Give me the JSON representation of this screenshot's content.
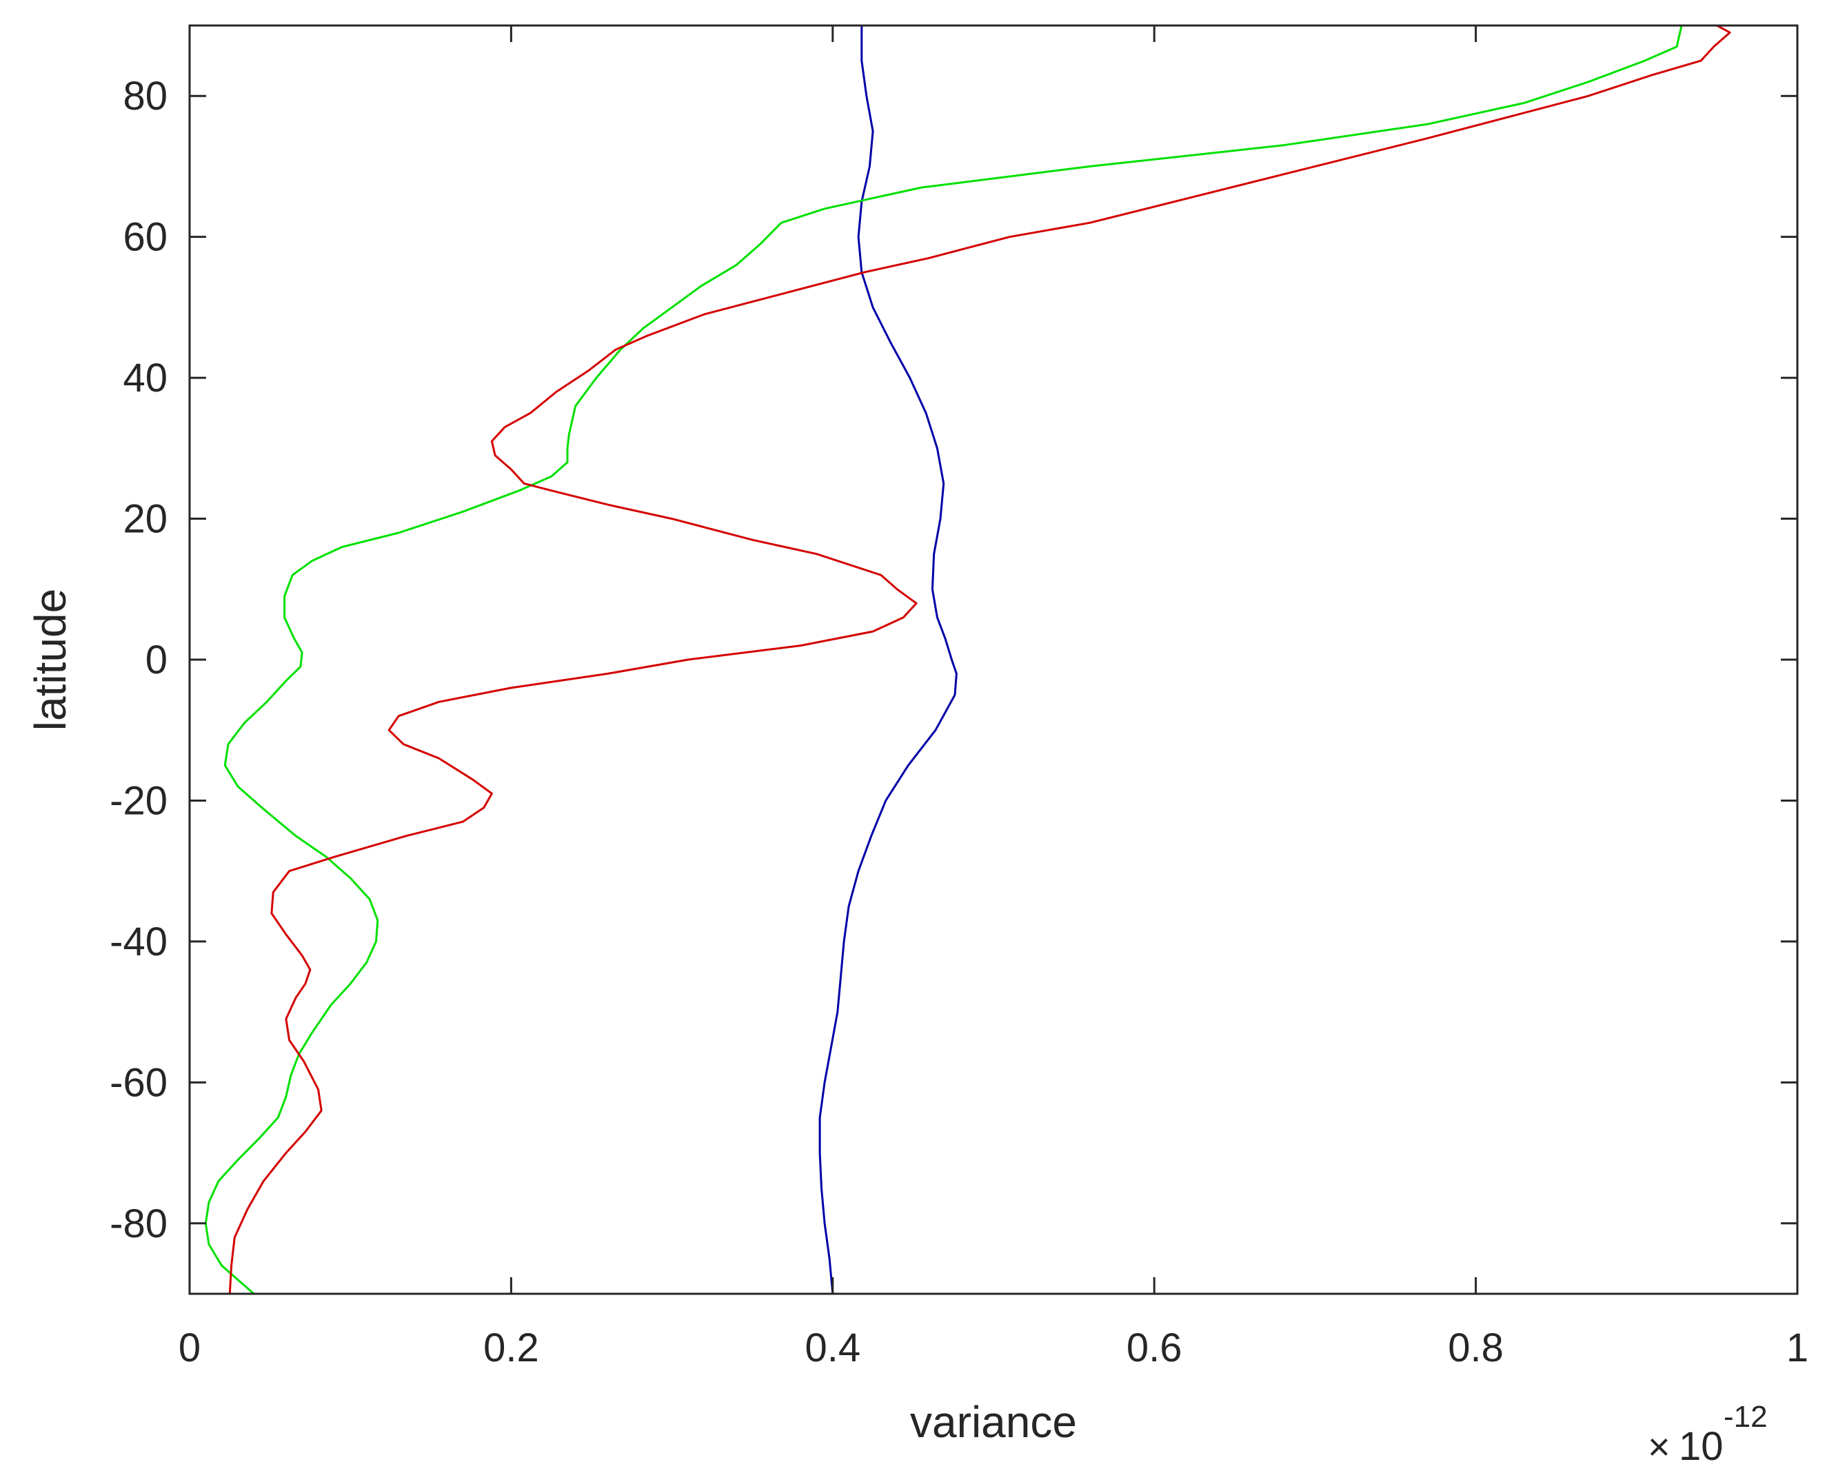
{
  "chart_data": {
    "type": "line",
    "title": "",
    "xlabel": "variance",
    "ylabel": "latitude",
    "x_exponent": {
      "times": "×",
      "base": "10",
      "power": "-12"
    },
    "xlim": [
      0,
      1
    ],
    "ylim": [
      -90,
      90
    ],
    "x_ticks": [
      0,
      0.2,
      0.4,
      0.6,
      0.8,
      1
    ],
    "x_tick_labels": [
      "0",
      "0.2",
      "0.4",
      "0.6",
      "0.8",
      "1"
    ],
    "y_ticks": [
      -80,
      -60,
      -40,
      -20,
      0,
      20,
      40,
      60,
      80
    ],
    "y_tick_labels": [
      "-80",
      "-60",
      "-40",
      "-20",
      "0",
      "20",
      "40",
      "60",
      "80"
    ],
    "grid": false,
    "legend": "none",
    "series": [
      {
        "color": "#0000a8",
        "points": [
          [
            0.4,
            -90
          ],
          [
            0.398,
            -85
          ],
          [
            0.395,
            -80
          ],
          [
            0.393,
            -75
          ],
          [
            0.392,
            -70
          ],
          [
            0.392,
            -65
          ],
          [
            0.395,
            -60
          ],
          [
            0.399,
            -55
          ],
          [
            0.403,
            -50
          ],
          [
            0.405,
            -45
          ],
          [
            0.407,
            -40
          ],
          [
            0.41,
            -35
          ],
          [
            0.416,
            -30
          ],
          [
            0.424,
            -25
          ],
          [
            0.433,
            -20
          ],
          [
            0.447,
            -15
          ],
          [
            0.464,
            -10
          ],
          [
            0.476,
            -5
          ],
          [
            0.477,
            -2
          ],
          [
            0.474,
            0
          ],
          [
            0.47,
            3
          ],
          [
            0.465,
            6
          ],
          [
            0.462,
            10
          ],
          [
            0.463,
            15
          ],
          [
            0.467,
            20
          ],
          [
            0.469,
            25
          ],
          [
            0.465,
            30
          ],
          [
            0.458,
            35
          ],
          [
            0.448,
            40
          ],
          [
            0.436,
            45
          ],
          [
            0.425,
            50
          ],
          [
            0.418,
            55
          ],
          [
            0.416,
            60
          ],
          [
            0.418,
            65
          ],
          [
            0.423,
            70
          ],
          [
            0.425,
            75
          ],
          [
            0.421,
            80
          ],
          [
            0.418,
            85
          ],
          [
            0.418,
            90
          ]
        ]
      },
      {
        "color": "#00e000",
        "points": [
          [
            0.04,
            -90
          ],
          [
            0.03,
            -88
          ],
          [
            0.02,
            -86
          ],
          [
            0.012,
            -83
          ],
          [
            0.01,
            -80
          ],
          [
            0.012,
            -77
          ],
          [
            0.018,
            -74
          ],
          [
            0.03,
            -71
          ],
          [
            0.043,
            -68
          ],
          [
            0.055,
            -65
          ],
          [
            0.06,
            -62
          ],
          [
            0.063,
            -59
          ],
          [
            0.068,
            -56
          ],
          [
            0.076,
            -53
          ],
          [
            0.088,
            -49
          ],
          [
            0.1,
            -46
          ],
          [
            0.11,
            -43
          ],
          [
            0.116,
            -40
          ],
          [
            0.117,
            -37
          ],
          [
            0.112,
            -34
          ],
          [
            0.1,
            -31
          ],
          [
            0.085,
            -28
          ],
          [
            0.066,
            -25
          ],
          [
            0.045,
            -21
          ],
          [
            0.03,
            -18
          ],
          [
            0.022,
            -15
          ],
          [
            0.024,
            -12
          ],
          [
            0.034,
            -9
          ],
          [
            0.048,
            -6
          ],
          [
            0.06,
            -3
          ],
          [
            0.069,
            -1
          ],
          [
            0.07,
            1
          ],
          [
            0.065,
            3
          ],
          [
            0.059,
            6
          ],
          [
            0.059,
            9
          ],
          [
            0.064,
            12
          ],
          [
            0.076,
            14
          ],
          [
            0.095,
            16
          ],
          [
            0.13,
            18
          ],
          [
            0.17,
            21
          ],
          [
            0.205,
            24
          ],
          [
            0.225,
            26
          ],
          [
            0.235,
            28
          ],
          [
            0.235,
            30
          ],
          [
            0.236,
            32
          ],
          [
            0.24,
            36
          ],
          [
            0.253,
            40
          ],
          [
            0.268,
            44
          ],
          [
            0.282,
            47
          ],
          [
            0.3,
            50
          ],
          [
            0.318,
            53
          ],
          [
            0.34,
            56
          ],
          [
            0.355,
            59
          ],
          [
            0.368,
            62
          ],
          [
            0.395,
            64
          ],
          [
            0.455,
            67
          ],
          [
            0.56,
            70
          ],
          [
            0.68,
            73
          ],
          [
            0.77,
            76
          ],
          [
            0.83,
            79
          ],
          [
            0.87,
            82
          ],
          [
            0.905,
            85
          ],
          [
            0.925,
            87
          ],
          [
            0.928,
            90
          ]
        ]
      },
      {
        "color": "#d40000",
        "points": [
          [
            0.025,
            -90
          ],
          [
            0.026,
            -86
          ],
          [
            0.028,
            -82
          ],
          [
            0.036,
            -78
          ],
          [
            0.046,
            -74
          ],
          [
            0.06,
            -70
          ],
          [
            0.072,
            -67
          ],
          [
            0.082,
            -64
          ],
          [
            0.08,
            -61
          ],
          [
            0.071,
            -57
          ],
          [
            0.062,
            -54
          ],
          [
            0.06,
            -51
          ],
          [
            0.066,
            -48
          ],
          [
            0.072,
            -46
          ],
          [
            0.075,
            -44
          ],
          [
            0.07,
            -42
          ],
          [
            0.06,
            -39
          ],
          [
            0.051,
            -36
          ],
          [
            0.052,
            -33
          ],
          [
            0.062,
            -30
          ],
          [
            0.09,
            -28
          ],
          [
            0.135,
            -25
          ],
          [
            0.17,
            -23
          ],
          [
            0.183,
            -21
          ],
          [
            0.188,
            -19
          ],
          [
            0.176,
            -17
          ],
          [
            0.155,
            -14
          ],
          [
            0.133,
            -12
          ],
          [
            0.124,
            -10
          ],
          [
            0.13,
            -8
          ],
          [
            0.155,
            -6
          ],
          [
            0.2,
            -4
          ],
          [
            0.26,
            -2
          ],
          [
            0.31,
            0
          ],
          [
            0.38,
            2
          ],
          [
            0.425,
            4
          ],
          [
            0.444,
            6
          ],
          [
            0.452,
            8
          ],
          [
            0.44,
            10
          ],
          [
            0.43,
            12
          ],
          [
            0.39,
            15
          ],
          [
            0.35,
            17
          ],
          [
            0.3,
            20
          ],
          [
            0.26,
            22
          ],
          [
            0.225,
            24
          ],
          [
            0.208,
            25
          ],
          [
            0.2,
            27
          ],
          [
            0.19,
            29
          ],
          [
            0.188,
            31
          ],
          [
            0.196,
            33
          ],
          [
            0.212,
            35
          ],
          [
            0.228,
            38
          ],
          [
            0.248,
            41
          ],
          [
            0.265,
            44
          ],
          [
            0.285,
            46
          ],
          [
            0.32,
            49
          ],
          [
            0.37,
            52
          ],
          [
            0.42,
            55
          ],
          [
            0.46,
            57
          ],
          [
            0.51,
            60
          ],
          [
            0.56,
            62
          ],
          [
            0.63,
            66
          ],
          [
            0.7,
            70
          ],
          [
            0.77,
            74
          ],
          [
            0.82,
            77
          ],
          [
            0.87,
            80
          ],
          [
            0.91,
            83
          ],
          [
            0.94,
            85
          ],
          [
            0.948,
            87
          ],
          [
            0.958,
            89
          ],
          [
            0.95,
            90
          ]
        ]
      }
    ]
  }
}
